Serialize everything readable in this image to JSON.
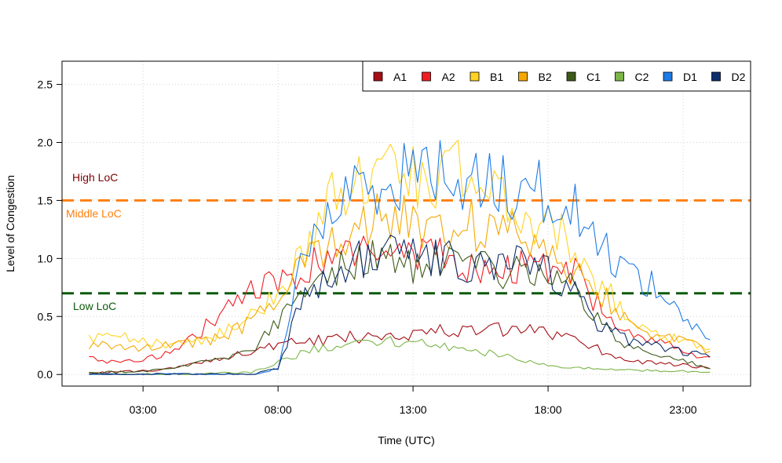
{
  "chart_data": {
    "type": "line",
    "xlabel": "Time (UTC)",
    "ylabel": "Level of Congestion",
    "xlim": [
      0.0,
      25.5
    ],
    "ylim": [
      -0.1,
      2.7
    ],
    "x_ticks": [
      {
        "value": 3,
        "label": "03:00"
      },
      {
        "value": 8,
        "label": "08:00"
      },
      {
        "value": 13,
        "label": "13:00"
      },
      {
        "value": 18,
        "label": "18:00"
      },
      {
        "value": 23,
        "label": "23:00"
      }
    ],
    "y_ticks": [
      {
        "value": 0.0,
        "label": "0.0"
      },
      {
        "value": 0.5,
        "label": "0.5"
      },
      {
        "value": 1.0,
        "label": "1.0"
      },
      {
        "value": 1.5,
        "label": "1.5"
      },
      {
        "value": 2.0,
        "label": "2.0"
      },
      {
        "value": 2.5,
        "label": "2.5"
      }
    ],
    "grid": true,
    "legend_position": "top-right",
    "reference_lines": [
      {
        "name": "middle",
        "value": 1.5,
        "label": "Middle LoC",
        "color": "#FF7F0E"
      },
      {
        "name": "low",
        "value": 0.7,
        "label": "Low LoC",
        "color": "#0B5A0B"
      }
    ],
    "extra_labels": [
      {
        "name": "high",
        "label": "High LoC",
        "color": "#7F0000"
      }
    ],
    "series": [
      {
        "name": "A1",
        "color": "#A50F15",
        "x": [
          1,
          2,
          3,
          4,
          5,
          6,
          7,
          8,
          9,
          10,
          11,
          12,
          13,
          14,
          15,
          16,
          17,
          18,
          19,
          20,
          21,
          22,
          23,
          24
        ],
        "y": [
          0.02,
          0.02,
          0.03,
          0.05,
          0.1,
          0.15,
          0.2,
          0.25,
          0.28,
          0.3,
          0.33,
          0.35,
          0.36,
          0.37,
          0.38,
          0.38,
          0.37,
          0.36,
          0.33,
          0.2,
          0.12,
          0.1,
          0.08,
          0.05
        ]
      },
      {
        "name": "A2",
        "color": "#EF1D24",
        "x": [
          1,
          2,
          3,
          4,
          5,
          6,
          7,
          8,
          9,
          10,
          11,
          12,
          13,
          14,
          15,
          16,
          17,
          18,
          19,
          20,
          21,
          22,
          23,
          24
        ],
        "y": [
          0.15,
          0.1,
          0.12,
          0.2,
          0.35,
          0.55,
          0.72,
          0.8,
          0.9,
          1.0,
          1.05,
          1.05,
          1.0,
          1.0,
          0.95,
          0.9,
          0.92,
          0.95,
          0.85,
          0.55,
          0.4,
          0.3,
          0.2,
          0.15
        ]
      },
      {
        "name": "B1",
        "color": "#FFD320",
        "x": [
          1,
          2,
          3,
          4,
          5,
          6,
          7,
          8,
          9,
          10,
          11,
          12,
          13,
          14,
          15,
          16,
          17,
          18,
          19,
          20,
          21,
          22,
          23,
          24
        ],
        "y": [
          0.3,
          0.32,
          0.28,
          0.27,
          0.3,
          0.35,
          0.5,
          0.7,
          1.1,
          1.5,
          1.7,
          1.8,
          1.7,
          1.75,
          1.7,
          1.55,
          1.4,
          1.3,
          1.05,
          0.75,
          0.5,
          0.35,
          0.3,
          0.22
        ]
      },
      {
        "name": "B2",
        "color": "#F5A800",
        "x": [
          1,
          2,
          3,
          4,
          5,
          6,
          7,
          8,
          9,
          10,
          11,
          12,
          13,
          14,
          15,
          16,
          17,
          18,
          19,
          20,
          21,
          22,
          23,
          24
        ],
        "y": [
          0.25,
          0.25,
          0.24,
          0.25,
          0.28,
          0.33,
          0.45,
          0.65,
          0.95,
          1.2,
          1.3,
          1.35,
          1.3,
          1.3,
          1.3,
          1.25,
          1.2,
          1.1,
          0.9,
          0.7,
          0.45,
          0.35,
          0.28,
          0.2
        ]
      },
      {
        "name": "C1",
        "color": "#3E5A1A",
        "x": [
          1,
          2,
          3,
          4,
          5,
          6,
          7,
          8,
          9,
          10,
          11,
          12,
          13,
          14,
          15,
          16,
          17,
          18,
          19,
          20,
          21,
          22,
          23,
          24
        ],
        "y": [
          0.02,
          0.02,
          0.03,
          0.05,
          0.1,
          0.15,
          0.2,
          0.45,
          0.7,
          0.9,
          1.0,
          1.0,
          0.95,
          0.95,
          0.92,
          0.9,
          0.9,
          0.88,
          0.75,
          0.4,
          0.25,
          0.18,
          0.12,
          0.05
        ]
      },
      {
        "name": "C2",
        "color": "#7AB648",
        "x": [
          1,
          2,
          3,
          4,
          5,
          6,
          7,
          8,
          9,
          10,
          11,
          12,
          13,
          14,
          15,
          16,
          17,
          18,
          19,
          20,
          21,
          22,
          23,
          24
        ],
        "y": [
          0.0,
          0.0,
          0.0,
          0.0,
          0.0,
          0.01,
          0.02,
          0.1,
          0.2,
          0.25,
          0.28,
          0.28,
          0.27,
          0.25,
          0.2,
          0.18,
          0.12,
          0.08,
          0.06,
          0.05,
          0.04,
          0.03,
          0.03,
          0.02
        ]
      },
      {
        "name": "D1",
        "color": "#1E7BE6",
        "x": [
          1,
          2,
          3,
          4,
          5,
          6,
          7,
          8,
          9,
          10,
          11,
          12,
          13,
          14,
          15,
          16,
          17,
          18,
          19,
          20,
          21,
          22,
          23,
          24
        ],
        "y": [
          0.0,
          0.0,
          0.0,
          0.0,
          0.0,
          0.0,
          0.0,
          0.05,
          1.1,
          1.4,
          1.6,
          1.7,
          1.75,
          1.75,
          1.7,
          1.65,
          1.6,
          1.55,
          1.4,
          1.1,
          0.9,
          0.75,
          0.5,
          0.3
        ]
      },
      {
        "name": "D2",
        "color": "#0D2D6B",
        "x": [
          1,
          2,
          3,
          4,
          5,
          6,
          7,
          8,
          9,
          10,
          11,
          12,
          13,
          14,
          15,
          16,
          17,
          18,
          19,
          20,
          21,
          22,
          23,
          24
        ],
        "y": [
          0.0,
          0.0,
          0.0,
          0.0,
          0.0,
          0.0,
          0.0,
          0.05,
          0.75,
          0.85,
          1.0,
          1.05,
          1.0,
          1.0,
          0.95,
          0.95,
          0.95,
          0.9,
          0.7,
          0.4,
          0.3,
          0.25,
          0.2,
          0.15
        ]
      }
    ]
  }
}
